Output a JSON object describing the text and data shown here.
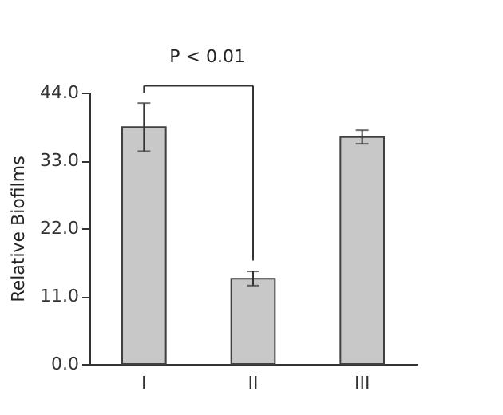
{
  "chart_data": {
    "type": "bar",
    "ylabel": "Relative Biofilms",
    "categories": [
      "I",
      "II",
      "III"
    ],
    "values": [
      38.4,
      13.8,
      36.8
    ],
    "errors": [
      [
        34.5,
        42.3
      ],
      [
        12.7,
        15.0
      ],
      [
        35.7,
        37.9
      ]
    ],
    "color": "#c8c8c8",
    "ylim": [
      0,
      44
    ],
    "yticks": [
      {
        "value": 0,
        "label": "0.0"
      },
      {
        "value": 11,
        "label": "11.0"
      },
      {
        "value": 22,
        "label": "22.0"
      },
      {
        "value": 33,
        "label": "33.0"
      },
      {
        "value": 44,
        "label": "44.0"
      }
    ],
    "grid": false,
    "annotations": [
      "P < 0.01"
    ]
  }
}
